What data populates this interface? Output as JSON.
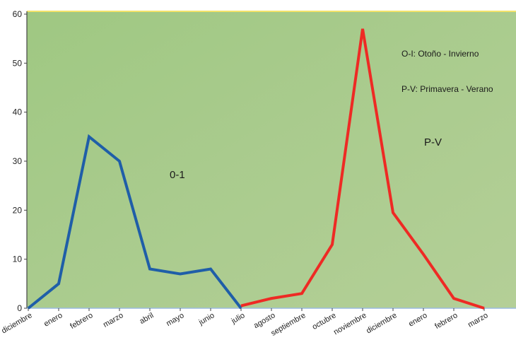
{
  "chart_data": {
    "type": "line",
    "title": "",
    "xlabel": "",
    "ylabel": "",
    "ylim": [
      0,
      60
    ],
    "yticks": [
      0,
      10,
      20,
      30,
      40,
      50,
      60
    ],
    "grid": false,
    "categories": [
      "diciembre",
      "enero",
      "febrero",
      "marzo",
      "abril",
      "mayo",
      "junio",
      "julio",
      "agosto",
      "septiembre",
      "octubre",
      "noviembre",
      "diciembre",
      "enero",
      "febrero",
      "marzo"
    ],
    "series": [
      {
        "name": "0-1",
        "color": "#1f5ea8",
        "points": [
          {
            "x": 0,
            "y": 0
          },
          {
            "x": 1,
            "y": 5
          },
          {
            "x": 2,
            "y": 35
          },
          {
            "x": 3,
            "y": 30
          },
          {
            "x": 4,
            "y": 8
          },
          {
            "x": 5,
            "y": 7
          },
          {
            "x": 6,
            "y": 8
          },
          {
            "x": 7,
            "y": 0
          }
        ]
      },
      {
        "name": "P-V",
        "color": "#ee2a24",
        "points": [
          {
            "x": 7,
            "y": 0.5
          },
          {
            "x": 8,
            "y": 2
          },
          {
            "x": 9,
            "y": 3
          },
          {
            "x": 10,
            "y": 13
          },
          {
            "x": 11,
            "y": 57
          },
          {
            "x": 12,
            "y": 19.5
          },
          {
            "x": 13,
            "y": 11
          },
          {
            "x": 14,
            "y": 2
          },
          {
            "x": 15,
            "y": 0
          }
        ]
      }
    ],
    "annotations": {
      "series1_label": "0-1",
      "series2_label": "P-V",
      "legend_line1": "O-I: Otoño - Invierno",
      "legend_line2": "P-V: Primavera - Verano"
    },
    "colors": {
      "plot_background": "#a8cc8a",
      "top_border": "#f4e36a",
      "axis": "#444444"
    }
  }
}
